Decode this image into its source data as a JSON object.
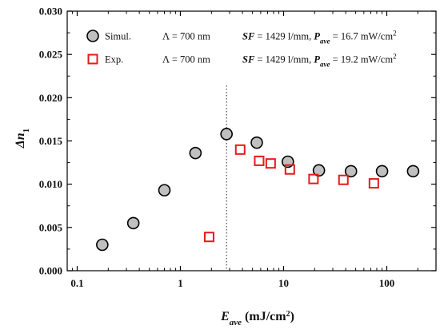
{
  "chart_data": {
    "type": "scatter",
    "x_scale": "log",
    "xlim": [
      0.08,
      300
    ],
    "ylim": [
      0.0,
      0.03
    ],
    "y_ticks": [
      0.0,
      0.005,
      0.01,
      0.015,
      0.02,
      0.025,
      0.03
    ],
    "y_tick_labels": [
      "0.000",
      "0.005",
      "0.010",
      "0.015",
      "0.020",
      "0.025",
      "0.030"
    ],
    "x_ticks": [
      0.1,
      1,
      10,
      100
    ],
    "x_tick_labels": [
      "0.1",
      "1",
      "10",
      "100"
    ],
    "xlabel": {
      "main": "E",
      "sub": "ave",
      "unit": " (mJ/cm",
      "sup": "2",
      "close": ")"
    },
    "ylabel": {
      "main": "Δn",
      "sub": "1"
    },
    "grid": false,
    "legend_position": "top",
    "reference_line": {
      "x": 2.8,
      "style": "dotted"
    },
    "series": [
      {
        "name": "Simul.",
        "marker": "circle",
        "fill": "#c0c0c0",
        "stroke": "#000000",
        "legend_info": {
          "lambda": "Λ = 700 nm",
          "sf_label": "SF",
          "sf_value": " = 1429 l/mm, ",
          "p_label": "P",
          "p_sub": "ave",
          "p_value": " = 16.7 mW/cm",
          "p_sup": "2"
        },
        "points": [
          [
            0.175,
            0.003
          ],
          [
            0.35,
            0.0055
          ],
          [
            0.7,
            0.0093
          ],
          [
            1.4,
            0.0136
          ],
          [
            2.8,
            0.0158
          ],
          [
            5.5,
            0.0148
          ],
          [
            11,
            0.0126
          ],
          [
            22,
            0.0116
          ],
          [
            45,
            0.0115
          ],
          [
            90,
            0.0115
          ],
          [
            180,
            0.0115
          ]
        ]
      },
      {
        "name": "Exp.",
        "marker": "square",
        "fill": "none",
        "stroke": "#e8191c",
        "legend_info": {
          "lambda": "Λ = 700 nm",
          "sf_label": "SF",
          "sf_value": " = 1429 l/mm, ",
          "p_label": "P",
          "p_sub": "ave",
          "p_value": " = 19.2 mW/cm",
          "p_sup": "2"
        },
        "points": [
          [
            1.9,
            0.0039
          ],
          [
            3.8,
            0.014
          ],
          [
            5.8,
            0.0127
          ],
          [
            7.5,
            0.0124
          ],
          [
            11.5,
            0.0117
          ],
          [
            19.5,
            0.0106
          ],
          [
            38,
            0.0105
          ],
          [
            75,
            0.0101
          ]
        ]
      }
    ]
  }
}
